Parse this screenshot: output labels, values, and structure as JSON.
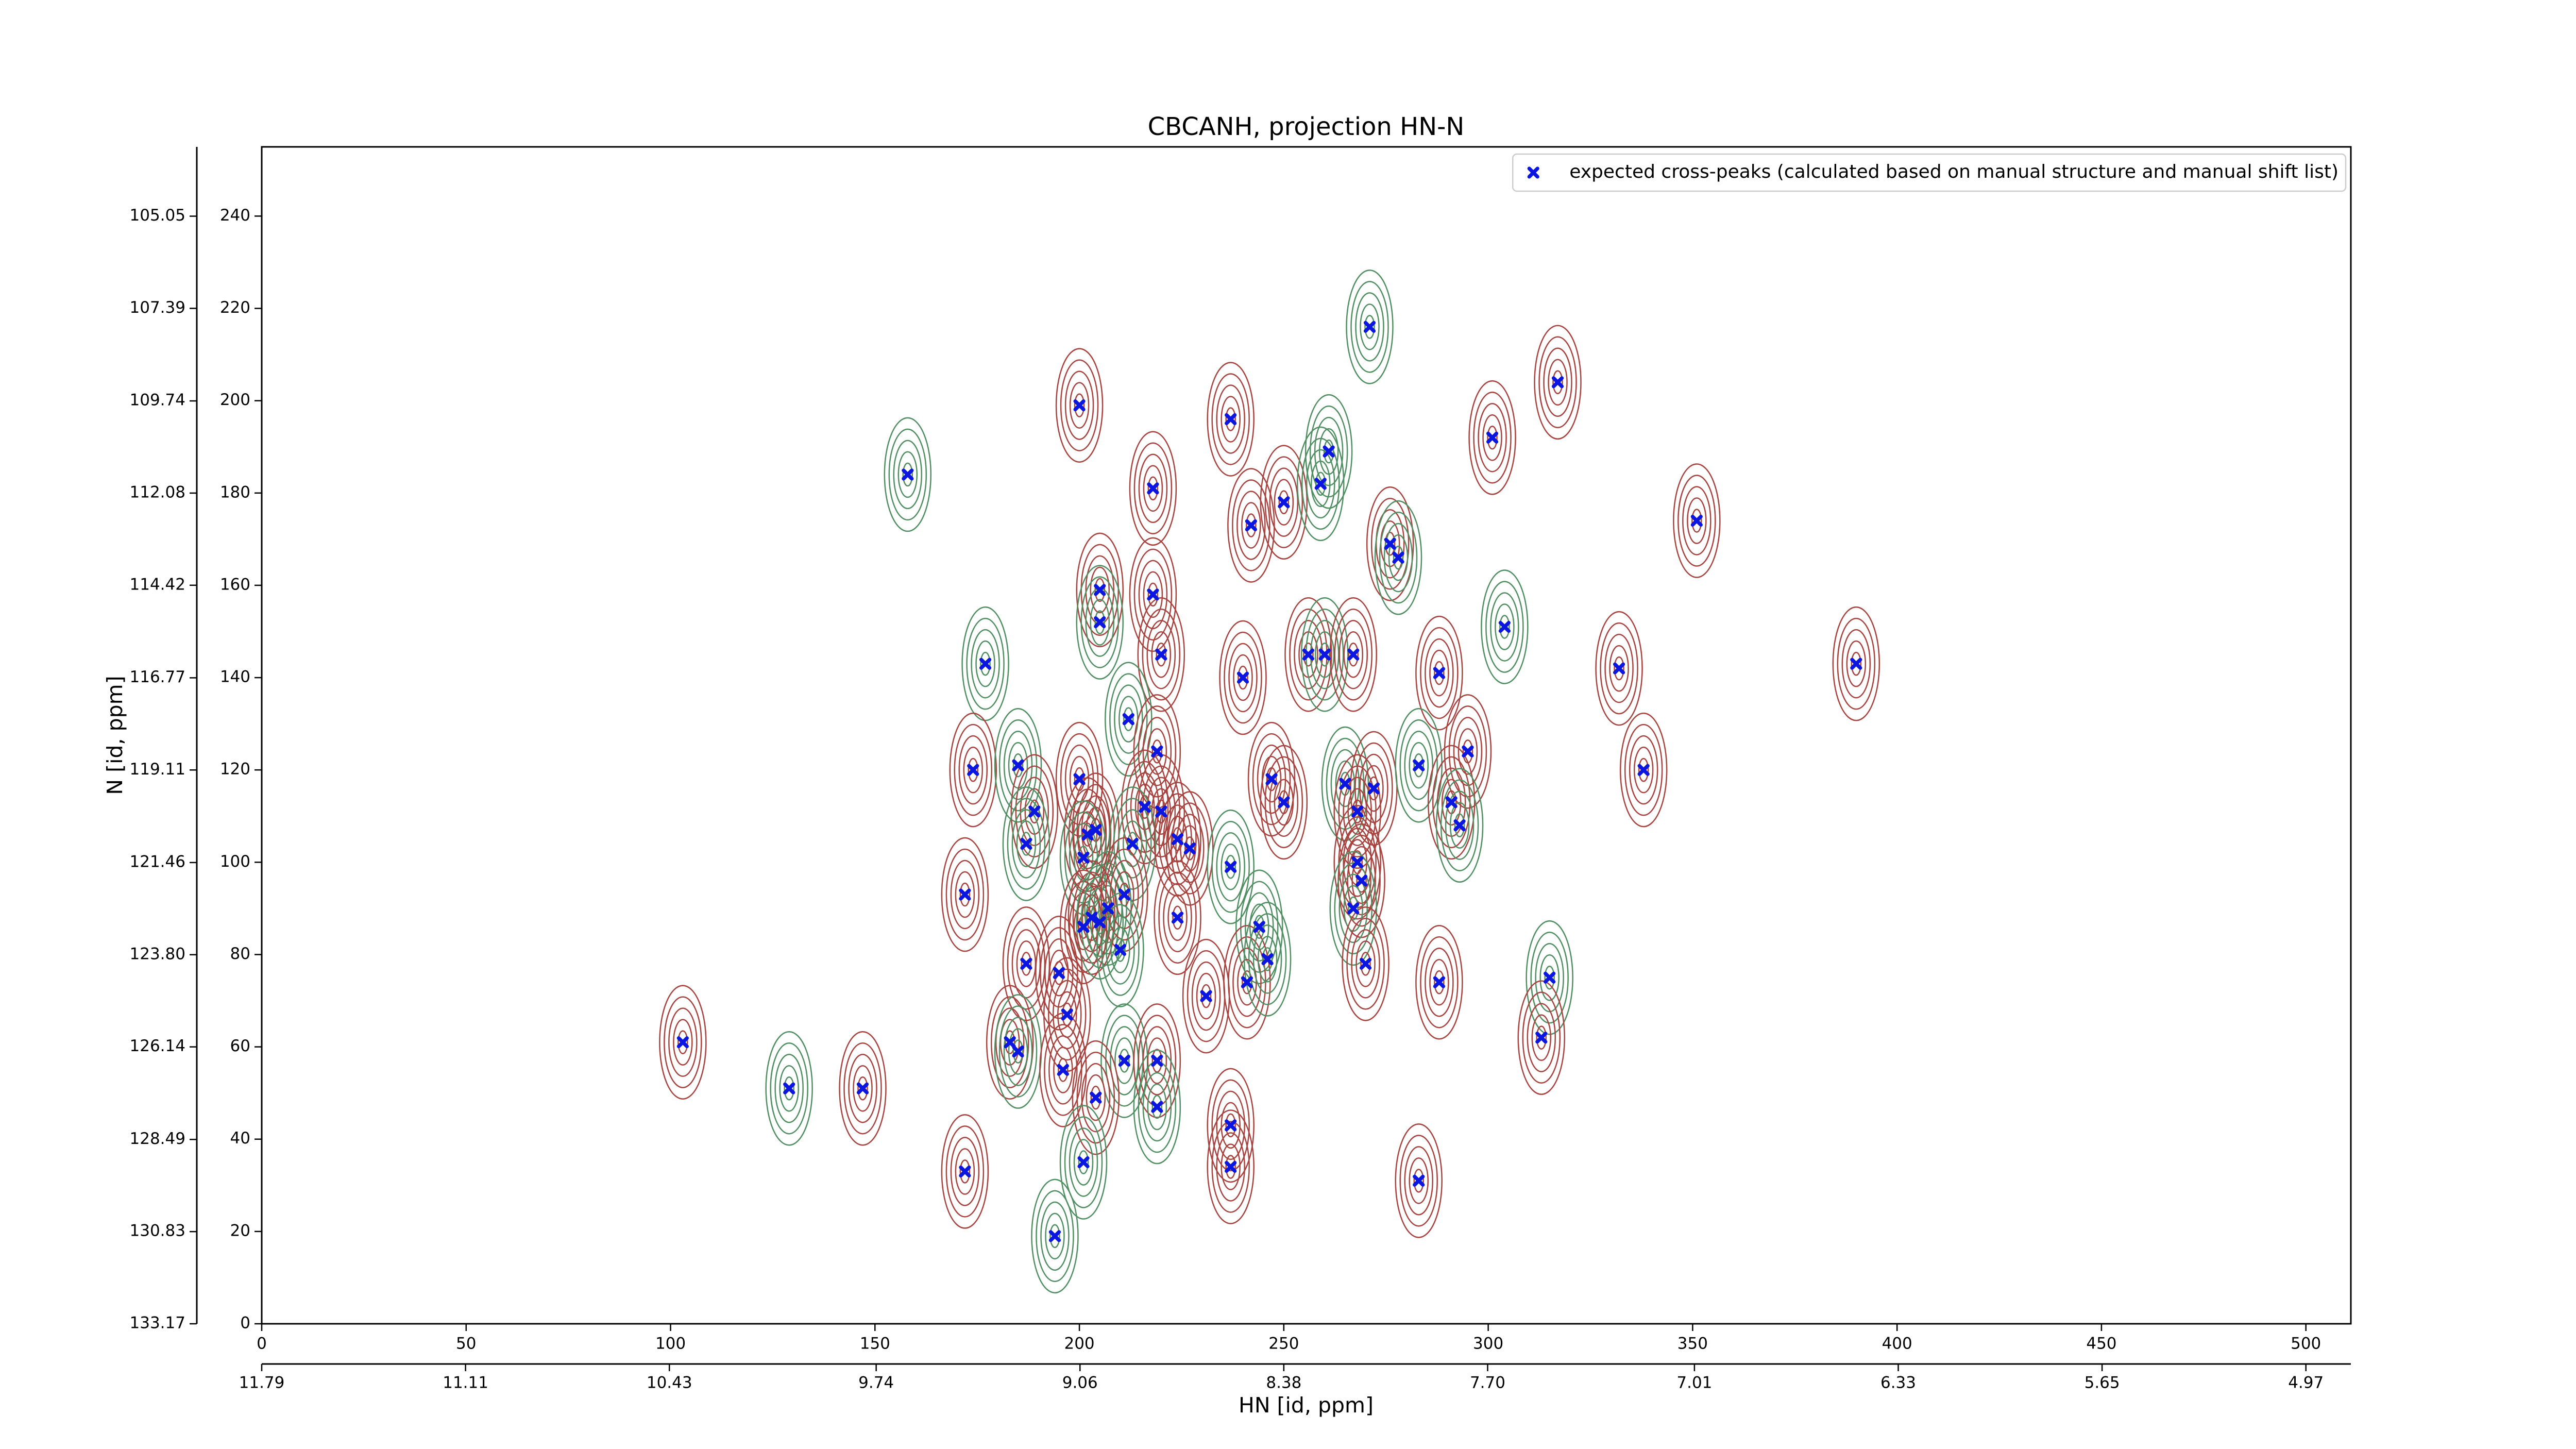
{
  "chart_data": {
    "type": "scatter",
    "title": "CBCANH, projection HN-N",
    "xlabel": "HN [id, ppm]",
    "ylabel": "N [id, ppm]",
    "xlim": [
      0,
      511
    ],
    "xticks": [
      0,
      50,
      100,
      150,
      200,
      250,
      300,
      350,
      400,
      450,
      500
    ],
    "x2lim": [
      11.79,
      4.82
    ],
    "x2ticks": [
      11.79,
      11.11,
      10.43,
      9.74,
      9.06,
      8.38,
      {
        "value": 7.7,
        "label": "7.70"
      },
      7.01,
      6.33,
      5.65,
      4.97
    ],
    "ylim": [
      0,
      255
    ],
    "yticks": [
      0,
      20,
      40,
      60,
      80,
      100,
      120,
      140,
      160,
      180,
      200,
      220,
      240
    ],
    "y2lim": [
      133.17,
      103.29
    ],
    "y2ticks": [
      133.17,
      130.83,
      128.49,
      126.14,
      {
        "value": 123.8,
        "label": "123.80"
      },
      121.46,
      119.11,
      116.77,
      114.42,
      112.08,
      109.74,
      107.39,
      105.05
    ],
    "legend": "upper right",
    "series": [
      {
        "name": "expected cross-peaks (calculated based on manual structure and manual shift list)",
        "color": "#0b16e0",
        "x": [
          158,
          200,
          237,
          271,
          317,
          301,
          261,
          218,
          250,
          259,
          242,
          276,
          278,
          351,
          205,
          205,
          218,
          220,
          177,
          240,
          256,
          260,
          267,
          288,
          304,
          332,
          390,
          212,
          219,
          174,
          185,
          200,
          189,
          187,
          204,
          202,
          201,
          216,
          220,
          213,
          224,
          227,
          237,
          247,
          250,
          265,
          268,
          272,
          283,
          295,
          291,
          293,
          268,
          269,
          267,
          338,
          172,
          207,
          203,
          201,
          205,
          211,
          224,
          244,
          187,
          195,
          210,
          231,
          241,
          246,
          270,
          288,
          315,
          197,
          183,
          185,
          103,
          313,
          211,
          219,
          196,
          129,
          147,
          204,
          219,
          237,
          237,
          201,
          172,
          283,
          194
        ],
        "y": [
          184,
          199,
          196,
          216,
          204,
          192,
          189,
          181,
          178,
          182,
          173,
          169,
          166,
          174,
          159,
          152,
          158,
          145,
          143,
          140,
          145,
          145,
          145,
          141,
          151,
          142,
          143,
          131,
          124,
          120,
          121,
          118,
          111,
          104,
          107,
          106,
          101,
          112,
          111,
          104,
          105,
          103,
          99,
          118,
          113,
          117,
          111,
          116,
          121,
          124,
          113,
          108,
          100,
          96,
          90,
          120,
          93,
          90,
          88,
          86,
          87,
          93,
          88,
          86,
          78,
          76,
          81,
          71,
          74,
          79,
          78,
          74,
          75,
          67,
          61,
          59,
          61,
          62,
          57,
          57,
          55,
          51,
          51,
          49,
          47,
          43,
          34,
          35,
          33,
          31,
          19
        ]
      }
    ]
  }
}
